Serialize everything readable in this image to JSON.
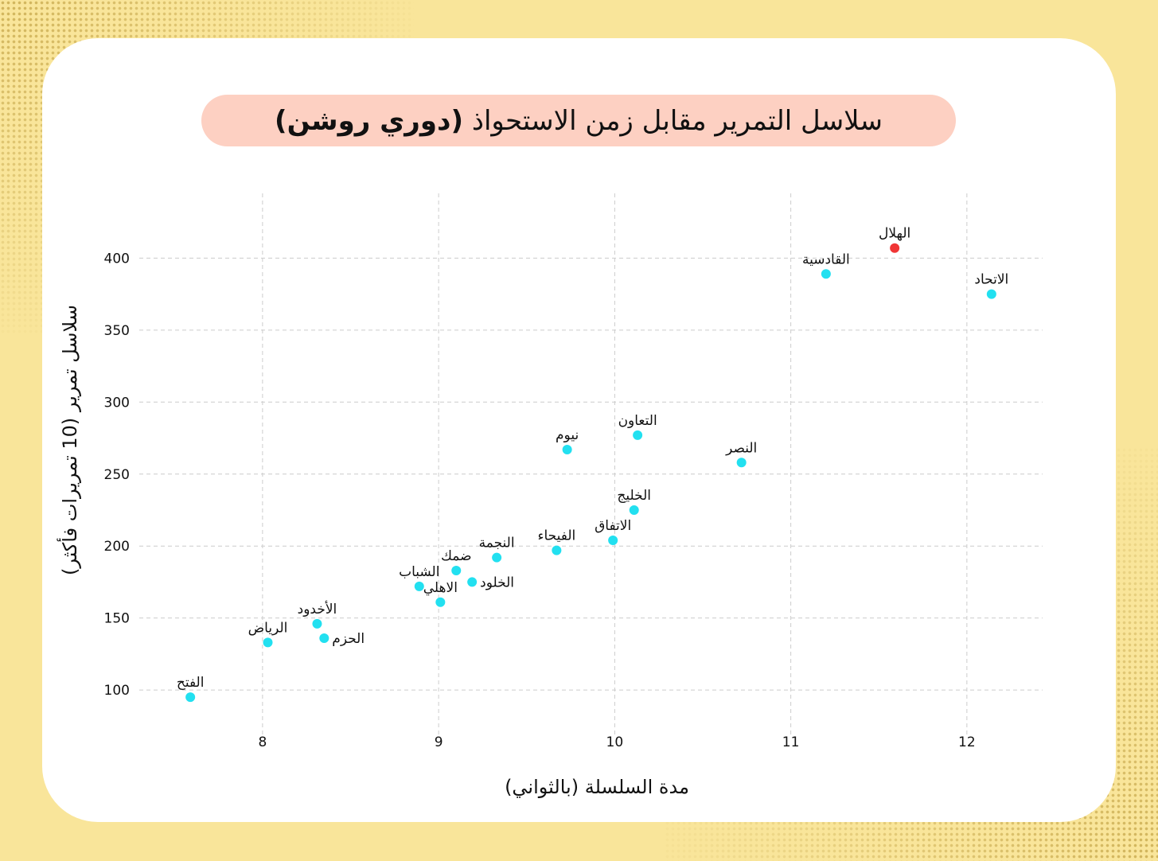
{
  "colors": {
    "background": "#f9e59a",
    "card": "#ffffff",
    "title_pill": "#fdd0c2",
    "point_default": "#22e0f0",
    "point_highlight": "#f03535",
    "grid": "#cccccc"
  },
  "chart_data": {
    "type": "scatter",
    "title": "سلاسل التمرير مقابل زمن الاستحواذ",
    "title_bold": "(دوري روشن)",
    "xlabel": "مدة السلسلة (بالثواني)",
    "ylabel": "سلاسل تمرير (10 تمريرات فأكثر)",
    "xlim": [
      7.3,
      12.43
    ],
    "ylim": [
      68,
      445
    ],
    "xticks": [
      8,
      9,
      10,
      11,
      12
    ],
    "yticks": [
      100,
      150,
      200,
      250,
      300,
      350,
      400
    ],
    "grid": true,
    "highlight": "الهلال",
    "points": [
      {
        "team": "الهلال",
        "x": 11.59,
        "y": 407,
        "label_pos": "top"
      },
      {
        "team": "القادسية",
        "x": 11.2,
        "y": 389,
        "label_pos": "top"
      },
      {
        "team": "الاتحاد",
        "x": 12.14,
        "y": 375,
        "label_pos": "top"
      },
      {
        "team": "التعاون",
        "x": 10.13,
        "y": 277,
        "label_pos": "top"
      },
      {
        "team": "نيوم",
        "x": 9.73,
        "y": 267,
        "label_pos": "top"
      },
      {
        "team": "النصر",
        "x": 10.72,
        "y": 258,
        "label_pos": "top"
      },
      {
        "team": "الخليج",
        "x": 10.11,
        "y": 225,
        "label_pos": "top"
      },
      {
        "team": "الاتفاق",
        "x": 9.99,
        "y": 204,
        "label_pos": "top"
      },
      {
        "team": "الفيحاء",
        "x": 9.67,
        "y": 197,
        "label_pos": "top"
      },
      {
        "team": "النجمة",
        "x": 9.33,
        "y": 192,
        "label_pos": "top"
      },
      {
        "team": "ضمك",
        "x": 9.1,
        "y": 183,
        "label_pos": "top"
      },
      {
        "team": "الخلود",
        "x": 9.19,
        "y": 175,
        "label_pos": "right"
      },
      {
        "team": "الشباب",
        "x": 8.89,
        "y": 172,
        "label_pos": "top"
      },
      {
        "team": "الاهلي",
        "x": 9.01,
        "y": 161,
        "label_pos": "top"
      },
      {
        "team": "الأخدود",
        "x": 8.31,
        "y": 146,
        "label_pos": "top"
      },
      {
        "team": "الحزم",
        "x": 8.35,
        "y": 136,
        "label_pos": "right"
      },
      {
        "team": "الرياض",
        "x": 8.03,
        "y": 133,
        "label_pos": "top"
      },
      {
        "team": "الفتح",
        "x": 7.59,
        "y": 95,
        "label_pos": "top"
      }
    ]
  }
}
